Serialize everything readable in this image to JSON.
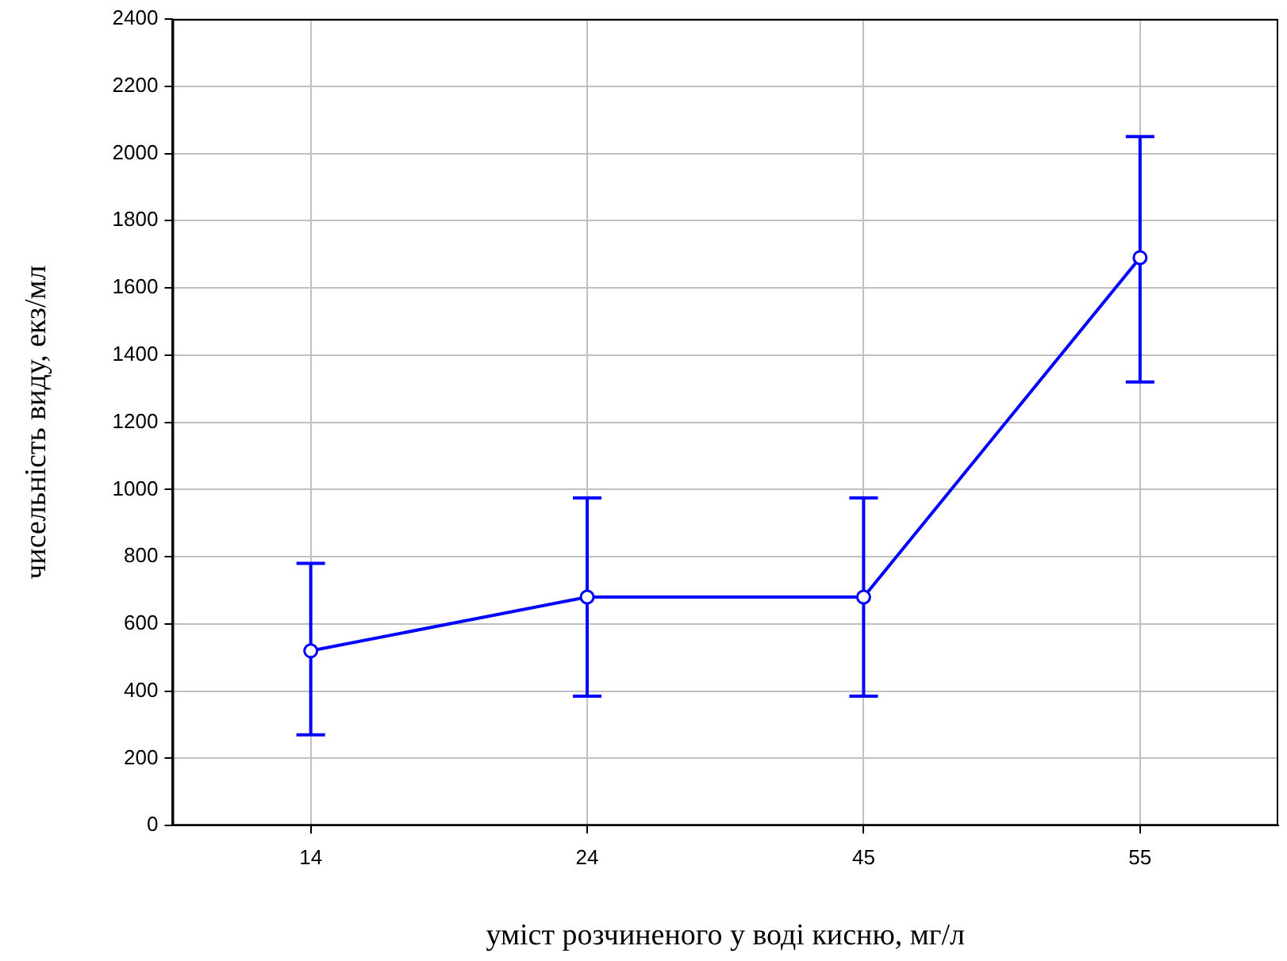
{
  "chart_data": {
    "type": "line",
    "xlabel": "уміст розчиненого у воді кисню, мг/л",
    "ylabel": "чисельність виду, екз/мл",
    "categories": [
      "14",
      "24",
      "45",
      "55"
    ],
    "series": [
      {
        "color": "#0000ff",
        "values": [
          520,
          680,
          680,
          1690
        ],
        "errors": [
          [
            270,
            780
          ],
          [
            385,
            975
          ],
          [
            385,
            975
          ],
          [
            1320,
            2050
          ]
        ]
      }
    ],
    "ylim": [
      0,
      2400
    ],
    "yticks": [
      0,
      200,
      400,
      600,
      800,
      1000,
      1200,
      1400,
      1600,
      1800,
      2000,
      2200,
      2400
    ],
    "grid": true,
    "legend": false,
    "marker": "circle",
    "line_style": "solid"
  }
}
